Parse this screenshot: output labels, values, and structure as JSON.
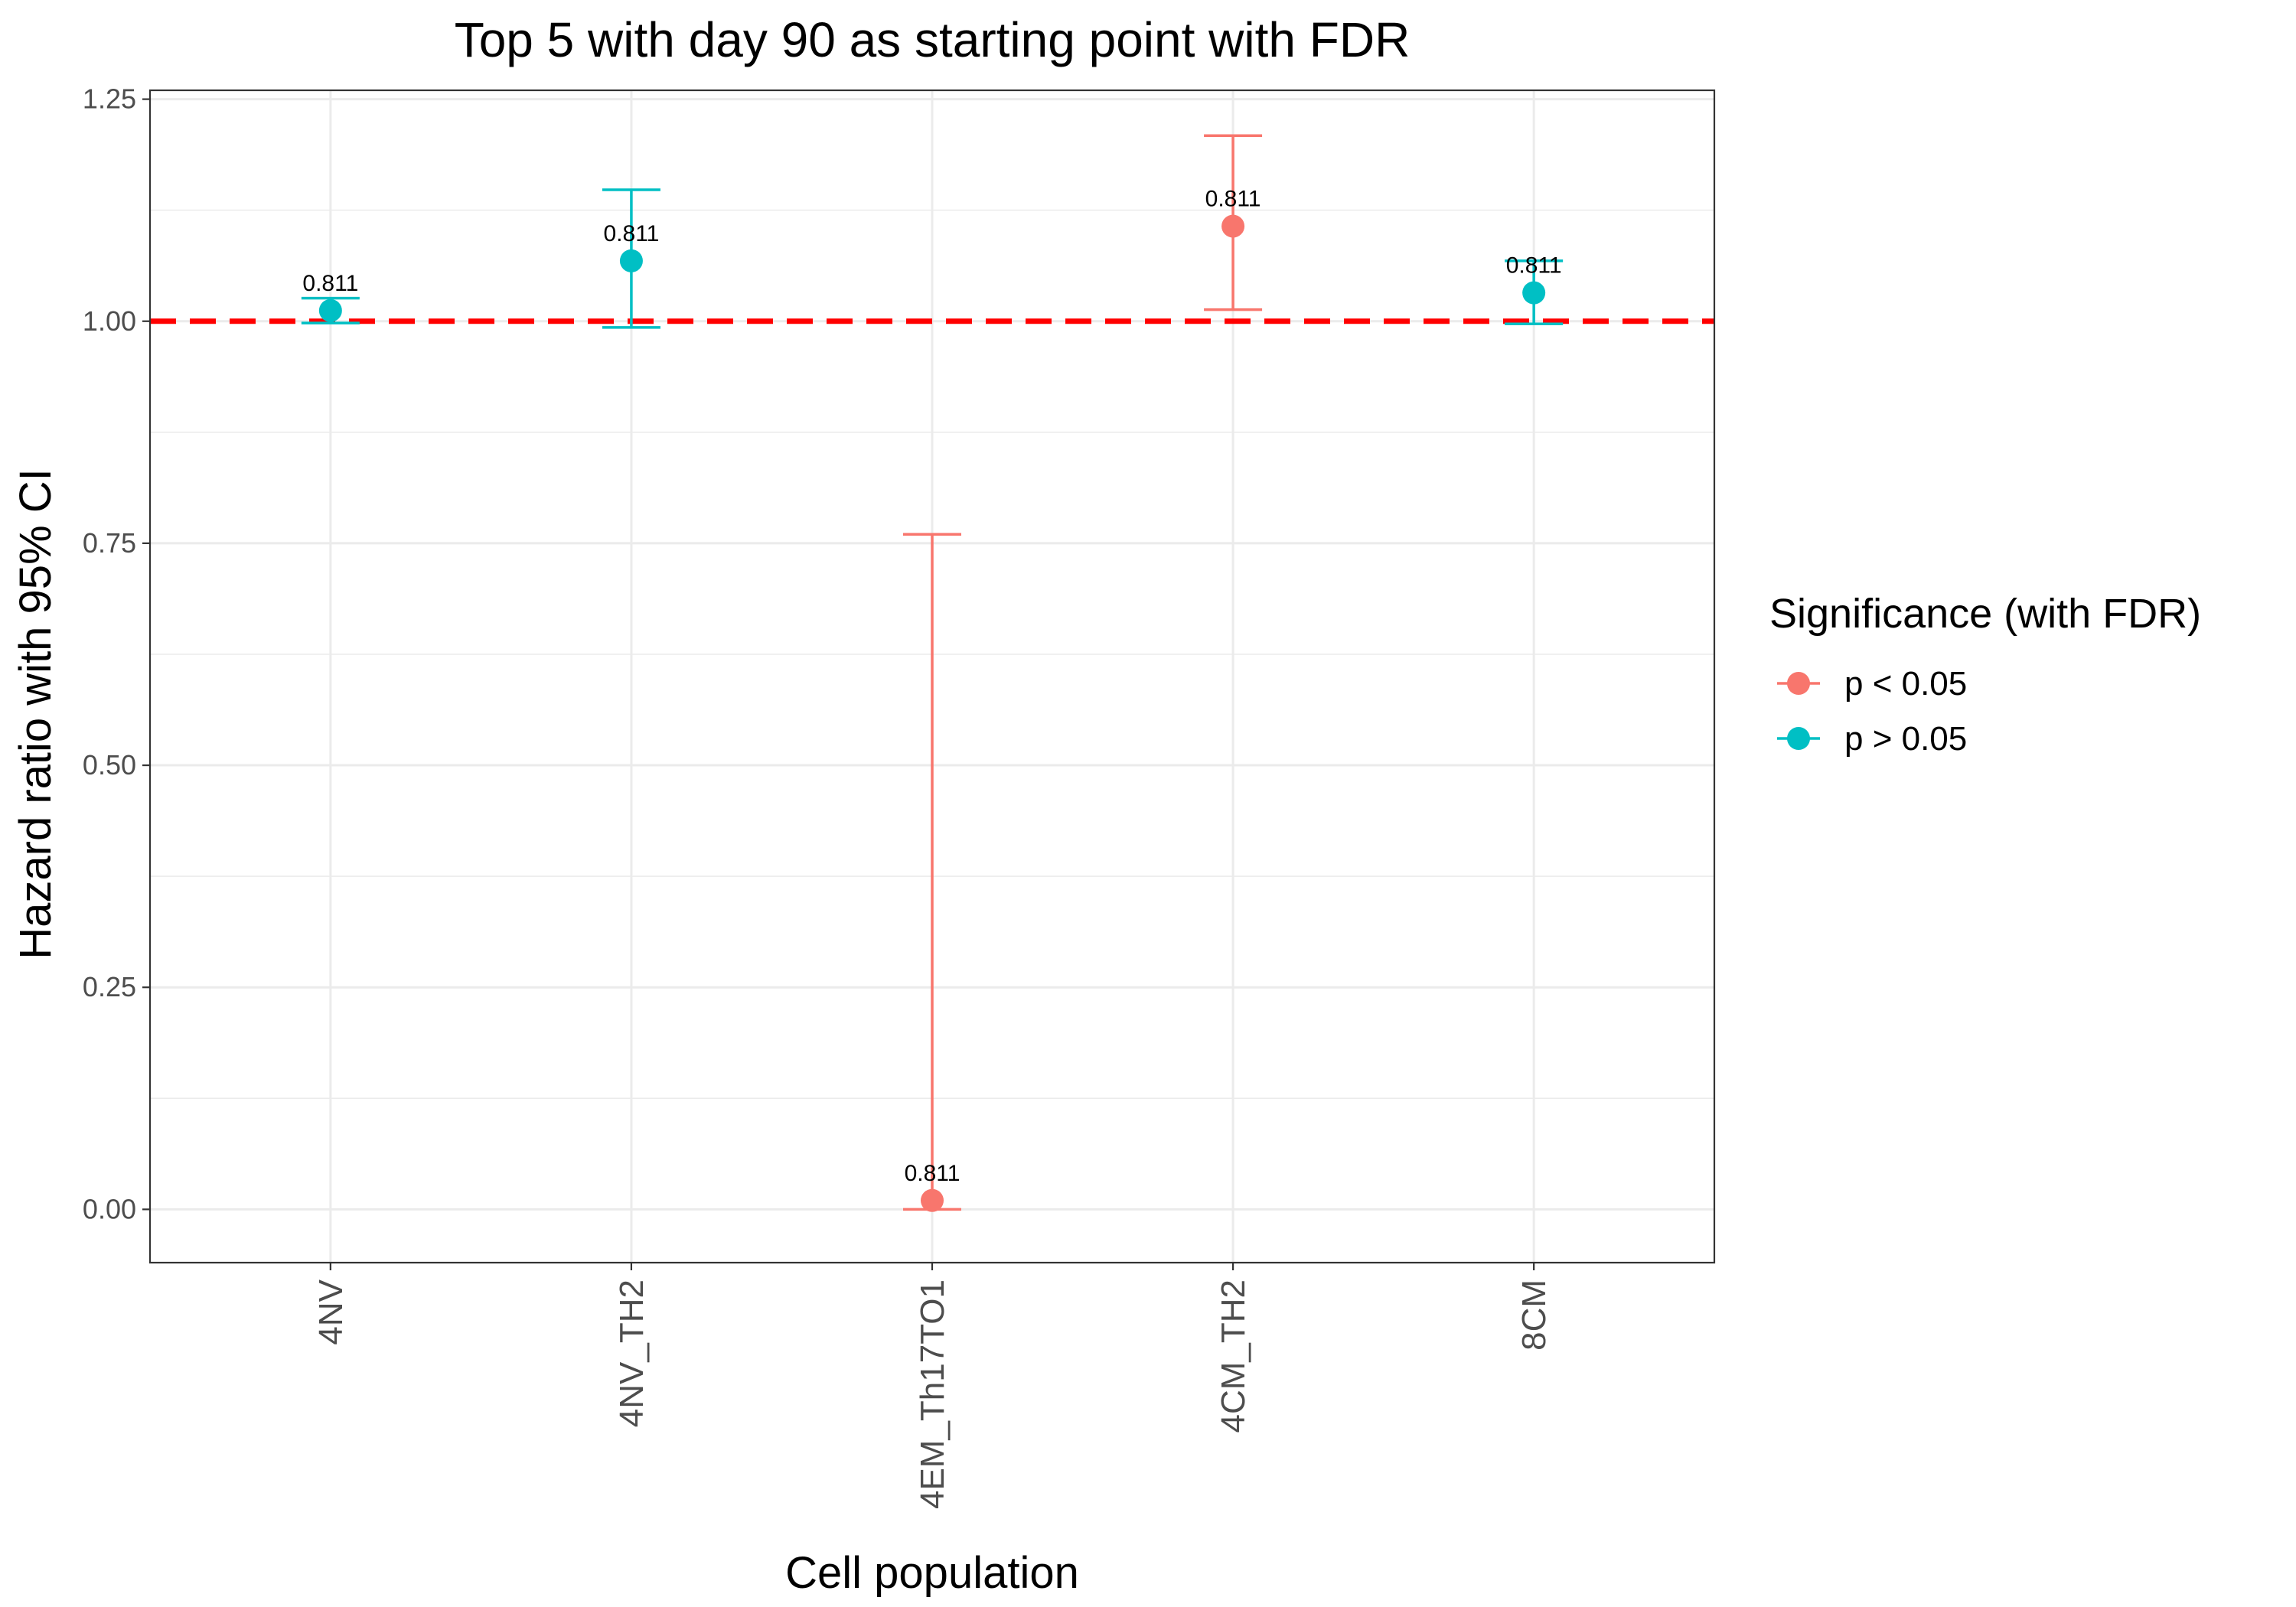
{
  "chart_data": {
    "type": "scatter",
    "title": "Top 5 with day 90 as starting point with FDR",
    "xlabel": "Cell population",
    "ylabel": "Hazard ratio with 95% CI",
    "categories": [
      "4NV",
      "4NV_TH2",
      "4EM_Th17TO1",
      "4CM_TH2",
      "8CM"
    ],
    "ylim": [
      -0.06,
      1.26
    ],
    "yticks": [
      0.0,
      0.25,
      0.5,
      0.75,
      1.0,
      1.25
    ],
    "ytick_labels": [
      "0.00",
      "0.25",
      "0.50",
      "0.75",
      "1.00",
      "1.25"
    ],
    "reference_line": {
      "y": 1.0,
      "style": "dashed",
      "color": "#FF0000"
    },
    "grid": true,
    "points": [
      {
        "category": "4NV",
        "hr": 1.012,
        "lower": 0.998,
        "upper": 1.026,
        "label": "0.811",
        "group": "p > 0.05"
      },
      {
        "category": "4NV_TH2",
        "hr": 1.068,
        "lower": 0.993,
        "upper": 1.148,
        "label": "0.811",
        "group": "p > 0.05"
      },
      {
        "category": "4EM_Th17TO1",
        "hr": 0.01,
        "lower": 0.0,
        "upper": 0.76,
        "label": "0.811",
        "group": "p < 0.05"
      },
      {
        "category": "4CM_TH2",
        "hr": 1.107,
        "lower": 1.013,
        "upper": 1.209,
        "label": "0.811",
        "group": "p < 0.05"
      },
      {
        "category": "8CM",
        "hr": 1.032,
        "lower": 0.997,
        "upper": 1.068,
        "label": "0.811",
        "group": "p > 0.05"
      }
    ],
    "legend": {
      "title": "Significance (with FDR)",
      "placement": "right",
      "entries": [
        {
          "label": "p < 0.05",
          "color": "#F8766D"
        },
        {
          "label": "p > 0.05",
          "color": "#00BFC4"
        }
      ]
    }
  }
}
